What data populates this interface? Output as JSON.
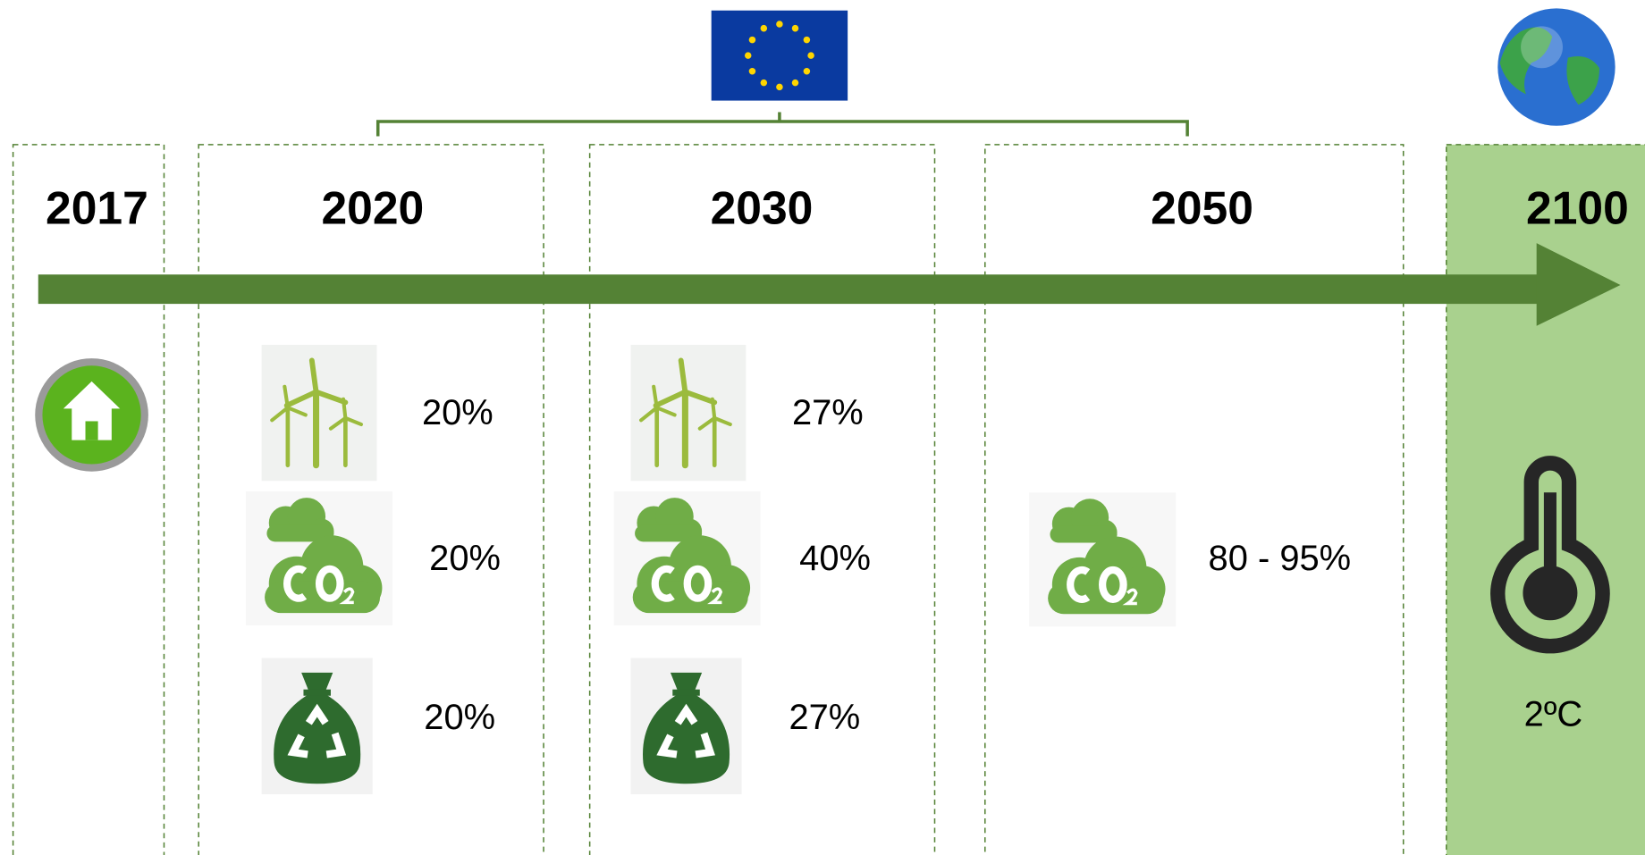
{
  "columns": [
    {
      "year": "2017"
    },
    {
      "year": "2020",
      "renewables": "20%",
      "co2": "20%",
      "waste": "20%"
    },
    {
      "year": "2030",
      "renewables": "27%",
      "co2": "40%",
      "waste": "27%"
    },
    {
      "year": "2050",
      "co2": "80 - 95%"
    },
    {
      "year": "2100",
      "temperature": "2ºC"
    }
  ]
}
